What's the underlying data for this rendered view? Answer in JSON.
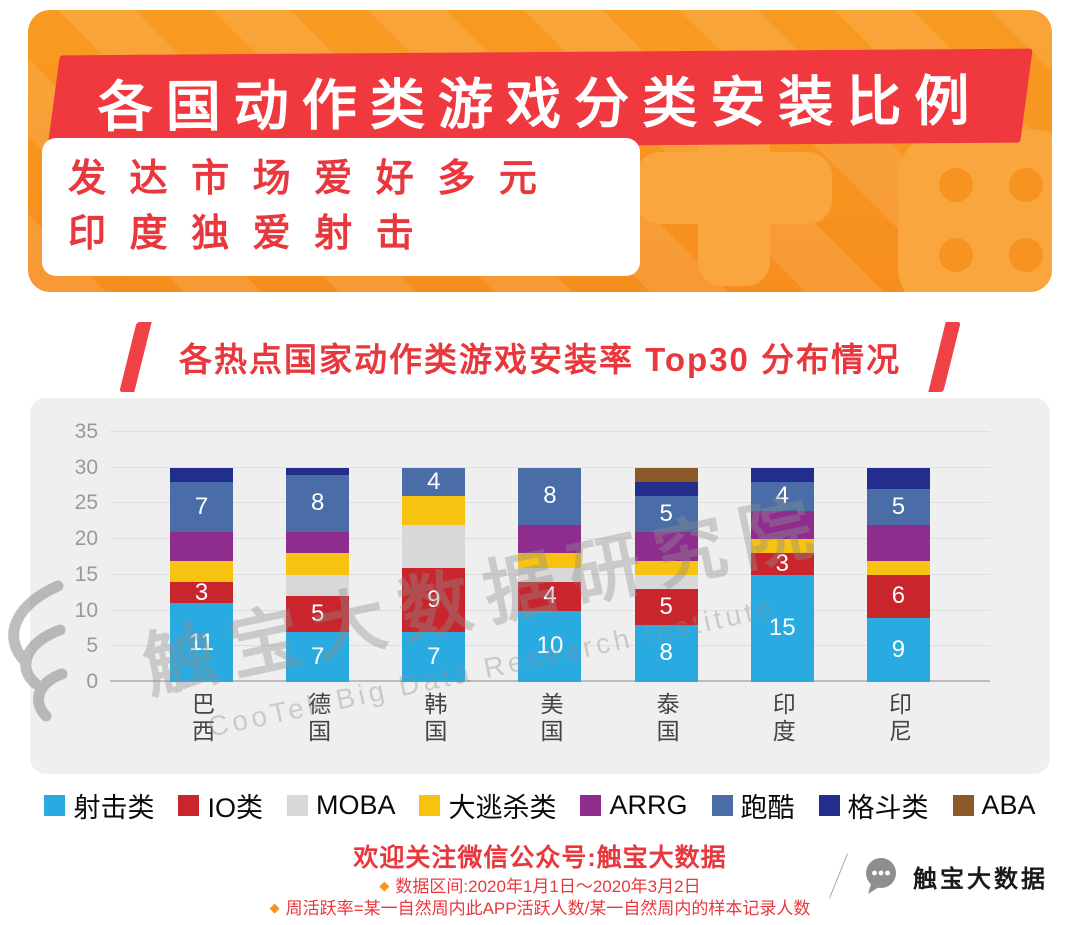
{
  "header": {
    "title": "各国动作类游戏分类安装比例",
    "subtitle_line1": "发达市场爱好多元",
    "subtitle_line2": "印度独爱射击"
  },
  "section": {
    "chart_banner": "各热点国家动作类游戏安装率 Top30 分布情况"
  },
  "chart_data": {
    "type": "bar",
    "stacked": true,
    "title": "各热点国家动作类游戏安装率 Top30 分布情况",
    "categories": [
      "巴西",
      "德国",
      "韩国",
      "美国",
      "泰国",
      "印度",
      "印尼"
    ],
    "series": [
      {
        "name": "射击类",
        "color": "#29ABE2",
        "labeled": true,
        "values": [
          11,
          7,
          7,
          10,
          8,
          15,
          9
        ]
      },
      {
        "name": "IO类",
        "color": "#C9252C",
        "labeled": true,
        "values": [
          3,
          5,
          9,
          4,
          5,
          3,
          6
        ]
      },
      {
        "name": "MOBA",
        "color": "#D8D8D8",
        "labeled": false,
        "values": [
          0,
          3,
          6,
          2,
          2,
          0,
          0
        ]
      },
      {
        "name": "大逃杀类",
        "color": "#F8C211",
        "labeled": false,
        "values": [
          3,
          3,
          4,
          2,
          2,
          2,
          2
        ]
      },
      {
        "name": "ARRG",
        "color": "#8E2D8E",
        "labeled": false,
        "values": [
          4,
          3,
          0,
          4,
          4,
          4,
          5
        ]
      },
      {
        "name": "跑酷",
        "color": "#4A6DA7",
        "labeled": true,
        "values": [
          7,
          8,
          4,
          8,
          5,
          4,
          5
        ]
      },
      {
        "name": "格斗类",
        "color": "#232E8C",
        "labeled": false,
        "values": [
          2,
          1,
          0,
          0,
          2,
          2,
          3
        ]
      },
      {
        "name": "ABA",
        "color": "#8C5A28",
        "labeled": false,
        "values": [
          0,
          0,
          0,
          0,
          2,
          0,
          0
        ]
      }
    ],
    "ylim": [
      0,
      35
    ],
    "yticks": [
      0,
      5,
      10,
      15,
      20,
      25,
      30,
      35
    ],
    "label_min": 3,
    "legend_position": "bottom",
    "grid": true
  },
  "watermark": {
    "cn": "触宝大数据研究院",
    "en": "CooTek Big Data Research Institute"
  },
  "footer": {
    "bullet": "◆",
    "wechat": "欢迎关注微信公众号:触宝大数据",
    "note1": "数据区间:2020年1月1日～2020年3月2日",
    "note2": "周活跃率=某一自然周内此APP活跃人数/某一自然周内的样本记录人数"
  },
  "brand": {
    "name": "触宝大数据"
  }
}
